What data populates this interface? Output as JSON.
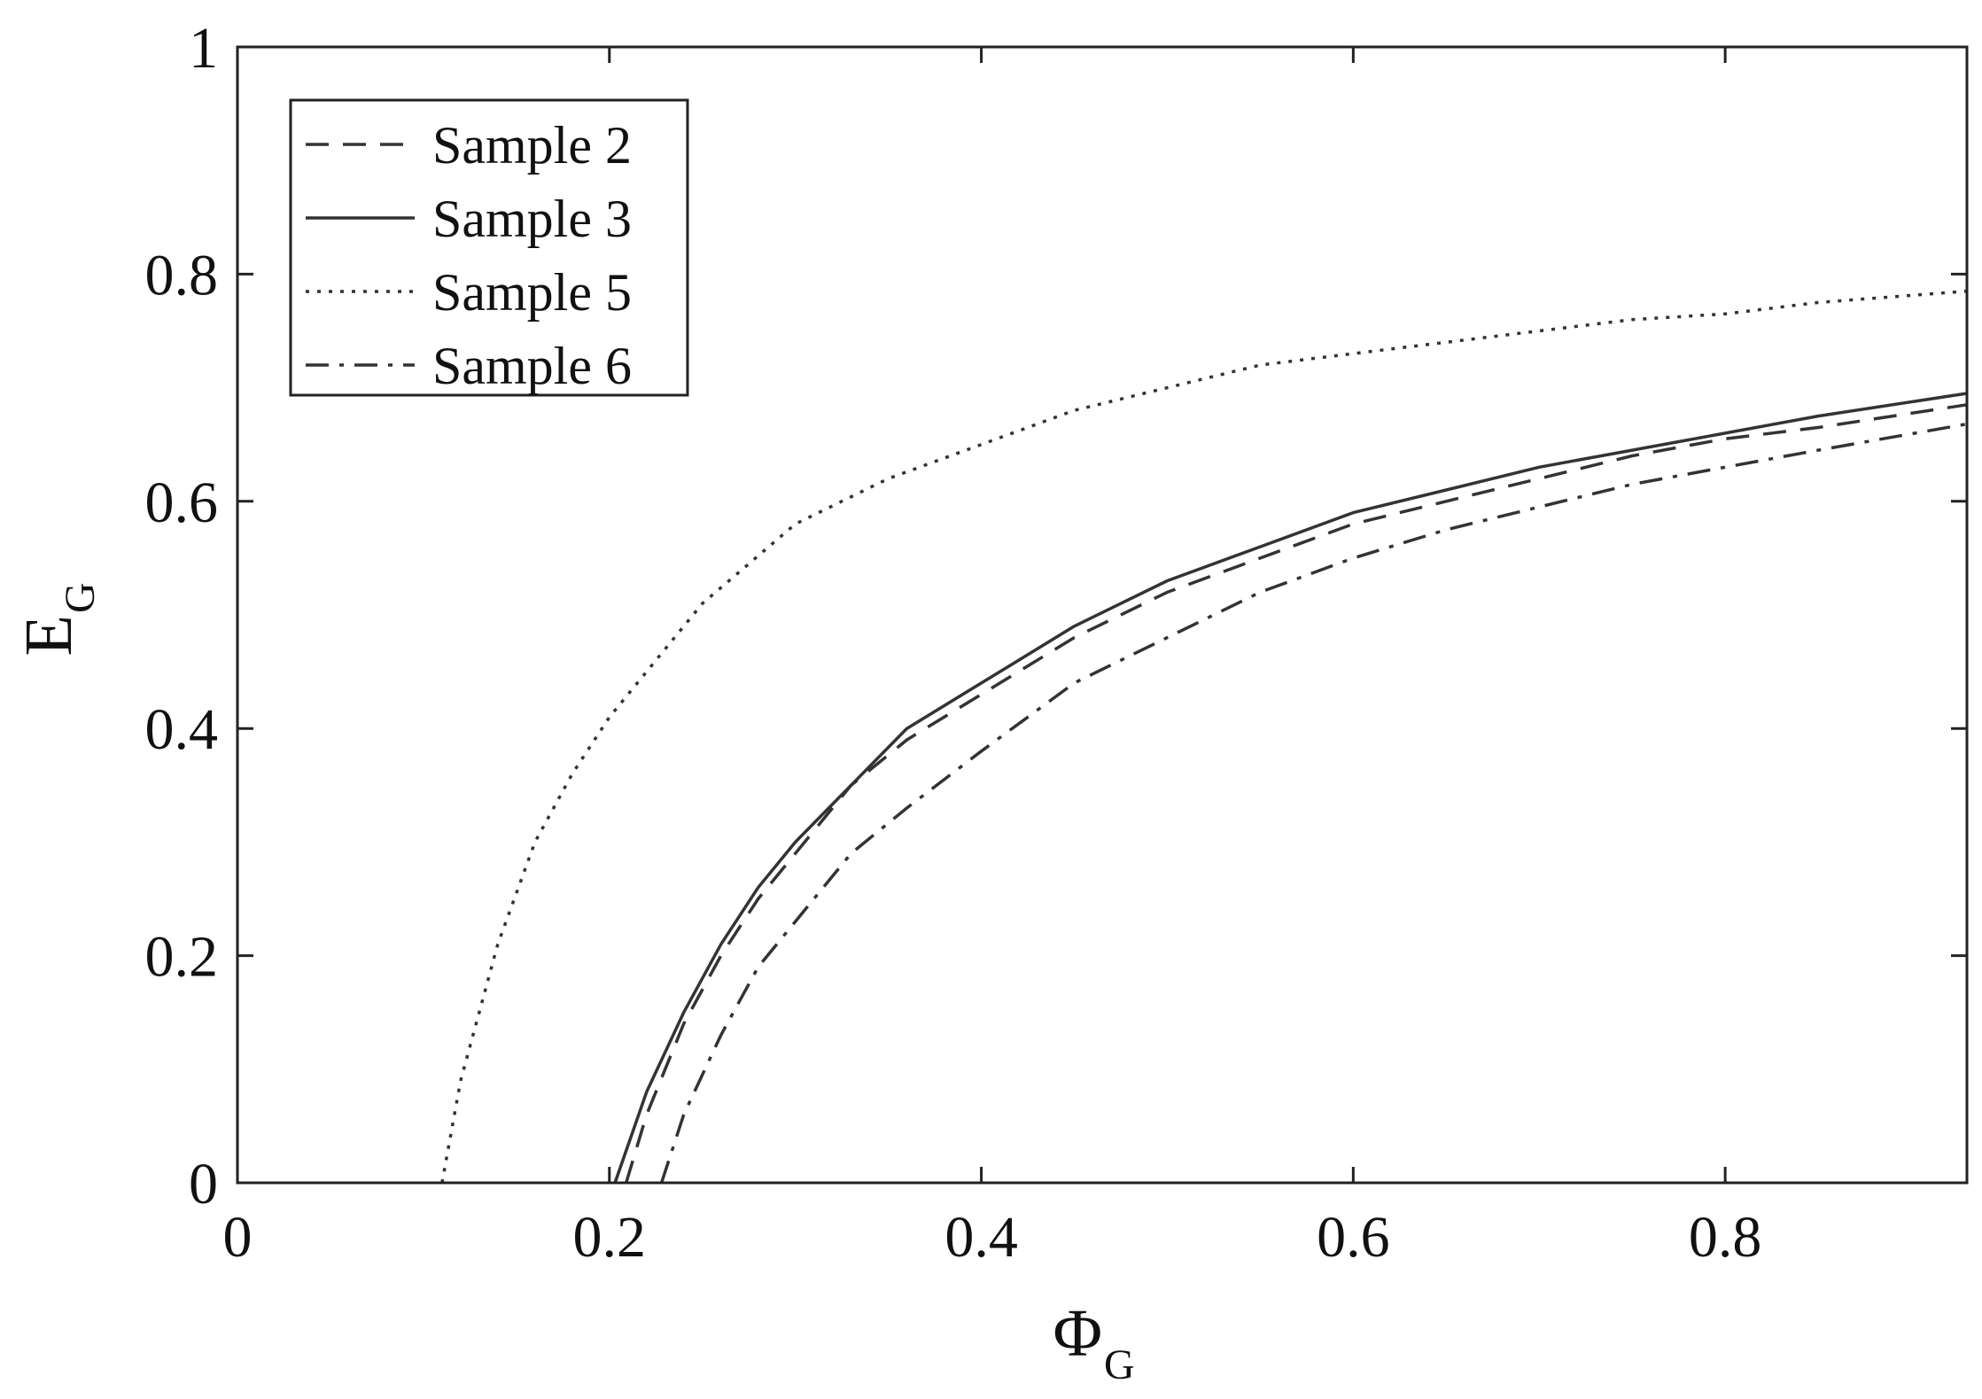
{
  "chart_data": {
    "type": "line",
    "title": "",
    "xlabel": {
      "main": "Φ",
      "sub": "G"
    },
    "ylabel": {
      "main": "E",
      "sub": "G"
    },
    "xlim": [
      0,
      0.93
    ],
    "ylim": [
      0,
      1
    ],
    "xticks": [
      0,
      0.2,
      0.4,
      0.6,
      0.8
    ],
    "yticks": [
      0,
      0.2,
      0.4,
      0.6,
      0.8,
      1
    ],
    "xtick_labels": [
      "0",
      "0.2",
      "0.4",
      "0.6",
      "0.8"
    ],
    "ytick_labels": [
      "0",
      "0.2",
      "0.4",
      "0.6",
      "0.8",
      "1"
    ],
    "grid": false,
    "legend_position": "top-left",
    "line_color": "#333333",
    "series": [
      {
        "name": "Sample 2",
        "style": "dashed",
        "x": [
          0.209,
          0.22,
          0.24,
          0.26,
          0.28,
          0.3,
          0.33,
          0.36,
          0.4,
          0.45,
          0.5,
          0.55,
          0.6,
          0.65,
          0.7,
          0.75,
          0.8,
          0.85,
          0.93
        ],
        "y": [
          0,
          0.06,
          0.14,
          0.2,
          0.25,
          0.29,
          0.35,
          0.39,
          0.43,
          0.48,
          0.52,
          0.55,
          0.58,
          0.6,
          0.62,
          0.64,
          0.655,
          0.665,
          0.685
        ]
      },
      {
        "name": "Sample 3",
        "style": "solid",
        "x": [
          0.203,
          0.22,
          0.24,
          0.26,
          0.28,
          0.3,
          0.33,
          0.36,
          0.4,
          0.45,
          0.5,
          0.55,
          0.6,
          0.65,
          0.7,
          0.75,
          0.8,
          0.85,
          0.93
        ],
        "y": [
          0,
          0.08,
          0.15,
          0.21,
          0.26,
          0.3,
          0.35,
          0.4,
          0.44,
          0.49,
          0.53,
          0.56,
          0.59,
          0.61,
          0.63,
          0.645,
          0.66,
          0.675,
          0.695
        ]
      },
      {
        "name": "Sample 5",
        "style": "dotted",
        "x": [
          0.11,
          0.12,
          0.14,
          0.16,
          0.18,
          0.2,
          0.22,
          0.25,
          0.3,
          0.35,
          0.4,
          0.45,
          0.5,
          0.55,
          0.6,
          0.65,
          0.7,
          0.75,
          0.8,
          0.85,
          0.93
        ],
        "y": [
          0,
          0.09,
          0.21,
          0.3,
          0.36,
          0.41,
          0.45,
          0.51,
          0.58,
          0.62,
          0.65,
          0.68,
          0.7,
          0.72,
          0.73,
          0.74,
          0.75,
          0.76,
          0.765,
          0.775,
          0.785
        ]
      },
      {
        "name": "Sample 6",
        "style": "dashdot",
        "x": [
          0.228,
          0.24,
          0.26,
          0.28,
          0.3,
          0.33,
          0.36,
          0.4,
          0.45,
          0.5,
          0.55,
          0.6,
          0.65,
          0.7,
          0.75,
          0.8,
          0.85,
          0.93
        ],
        "y": [
          0,
          0.06,
          0.13,
          0.19,
          0.23,
          0.29,
          0.33,
          0.38,
          0.44,
          0.48,
          0.52,
          0.55,
          0.575,
          0.595,
          0.615,
          0.63,
          0.645,
          0.668
        ]
      }
    ]
  }
}
